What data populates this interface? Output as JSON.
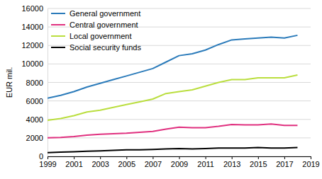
{
  "chart_data": {
    "type": "line",
    "y_label": "EUR mil.",
    "x": [
      1999,
      2000,
      2001,
      2002,
      2003,
      2004,
      2005,
      2006,
      2007,
      2008,
      2009,
      2010,
      2011,
      2012,
      2013,
      2014,
      2015,
      2016,
      2017,
      2018
    ],
    "series": [
      {
        "name": "General government",
        "color": "#2b7bba",
        "values": [
          6300,
          6600,
          7000,
          7500,
          7900,
          8300,
          8700,
          9100,
          9500,
          10200,
          10900,
          11100,
          11500,
          12100,
          12600,
          12700,
          12800,
          12900,
          12800,
          13100
        ]
      },
      {
        "name": "Central government",
        "color": "#e0307f",
        "values": [
          2000,
          2050,
          2150,
          2300,
          2400,
          2450,
          2500,
          2600,
          2700,
          2950,
          3150,
          3100,
          3100,
          3250,
          3450,
          3400,
          3400,
          3500,
          3350,
          3350
        ]
      },
      {
        "name": "Local government",
        "color": "#bade3e",
        "values": [
          3900,
          4100,
          4400,
          4800,
          5000,
          5300,
          5600,
          5900,
          6200,
          6800,
          7000,
          7200,
          7600,
          8000,
          8300,
          8300,
          8500,
          8500,
          8500,
          8800
        ]
      },
      {
        "name": "Social security funds",
        "color": "#000000",
        "values": [
          400,
          450,
          500,
          550,
          600,
          650,
          700,
          700,
          750,
          800,
          850,
          800,
          850,
          900,
          900,
          900,
          950,
          900,
          900,
          950
        ]
      }
    ],
    "xlim": [
      1999,
      2019
    ],
    "xticks": [
      1999,
      2001,
      2003,
      2005,
      2007,
      2009,
      2011,
      2013,
      2015,
      2017,
      2019
    ],
    "ylim": [
      0,
      16000
    ],
    "yticks": [
      0,
      2000,
      4000,
      6000,
      8000,
      10000,
      12000,
      14000,
      16000
    ],
    "grid": true,
    "legend": "upper left"
  }
}
